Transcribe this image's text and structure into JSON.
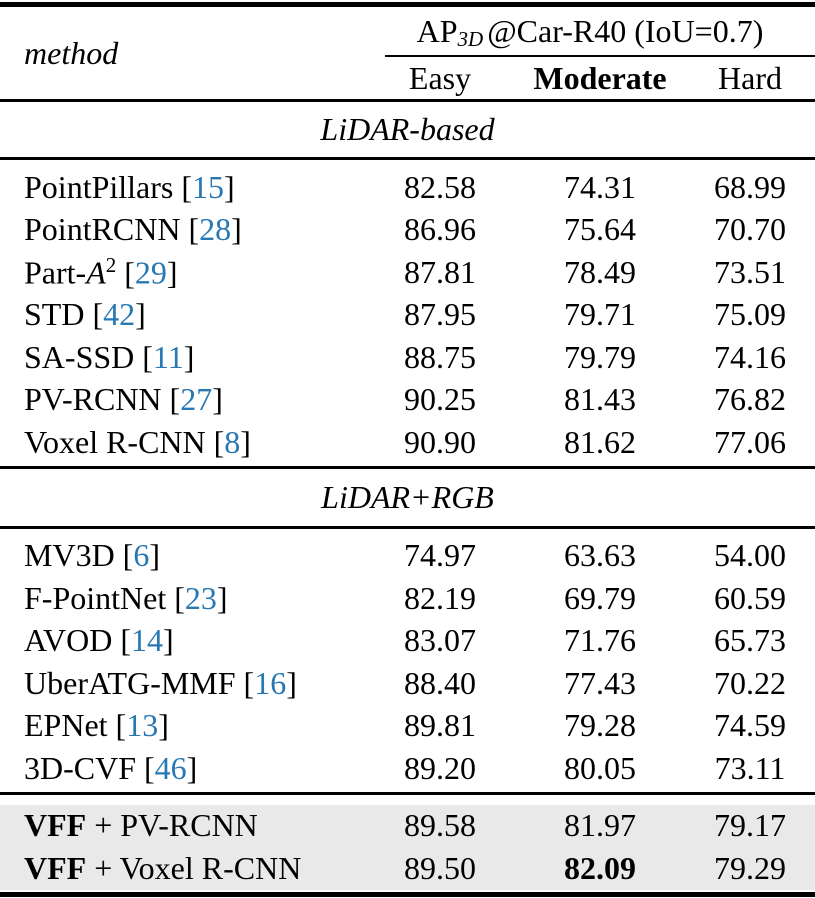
{
  "header": {
    "method_label": "method",
    "group_title_prefix": "AP",
    "group_title_sub": "3D",
    "group_title_rest": "@Car-R40 (IoU=0.7)",
    "columns": {
      "easy": "Easy",
      "moderate": "Moderate",
      "hard": "Hard"
    }
  },
  "cite_open": "[",
  "cite_close": "]",
  "sections": [
    {
      "title": "LiDAR-based",
      "rows": [
        {
          "name": "PointPillars",
          "cite": "15",
          "easy": "82.58",
          "moderate": "74.31",
          "hard": "68.99"
        },
        {
          "name": "PointRCNN",
          "cite": "28",
          "easy": "86.96",
          "moderate": "75.64",
          "hard": "70.70"
        },
        {
          "name": "Part-",
          "math": "A",
          "sup": "2",
          "cite": "29",
          "easy": "87.81",
          "moderate": "78.49",
          "hard": "73.51"
        },
        {
          "name": "STD",
          "cite": "42",
          "easy": "87.95",
          "moderate": "79.71",
          "hard": "75.09"
        },
        {
          "name": "SA-SSD",
          "cite": "11",
          "easy": "88.75",
          "moderate": "79.79",
          "hard": "74.16"
        },
        {
          "name": "PV-RCNN",
          "cite": "27",
          "easy": "90.25",
          "moderate": "81.43",
          "hard": "76.82"
        },
        {
          "name": "Voxel R-CNN",
          "cite": "8",
          "easy": "90.90",
          "moderate": "81.62",
          "hard": "77.06"
        }
      ]
    },
    {
      "title": "LiDAR+RGB",
      "rows": [
        {
          "name": "MV3D",
          "cite": "6",
          "easy": "74.97",
          "moderate": "63.63",
          "hard": "54.00"
        },
        {
          "name": "F-PointNet",
          "cite": "23",
          "easy": "82.19",
          "moderate": "69.79",
          "hard": "60.59"
        },
        {
          "name": "AVOD",
          "cite": "14",
          "easy": "83.07",
          "moderate": "71.76",
          "hard": "65.73"
        },
        {
          "name": "UberATG-MMF",
          "cite": "16",
          "easy": "88.40",
          "moderate": "77.43",
          "hard": "70.22"
        },
        {
          "name": "EPNet",
          "cite": "13",
          "easy": "89.81",
          "moderate": "79.28",
          "hard": "74.59"
        },
        {
          "name": "3D-CVF",
          "cite": "46",
          "easy": "89.20",
          "moderate": "80.05",
          "hard": "73.11"
        }
      ]
    }
  ],
  "highlight": {
    "rows": [
      {
        "bold": "VFF",
        "rest": " + PV-RCNN",
        "easy": "89.58",
        "moderate": "81.97",
        "hard": "79.17"
      },
      {
        "bold": "VFF",
        "rest": " + Voxel R-CNN",
        "easy": "89.50",
        "moderate": "82.09",
        "hard": "79.29"
      }
    ]
  },
  "colors": {
    "citation_blue": "#2878b4",
    "highlight_background": "#e9e9e9",
    "rule_black": "#000000"
  }
}
